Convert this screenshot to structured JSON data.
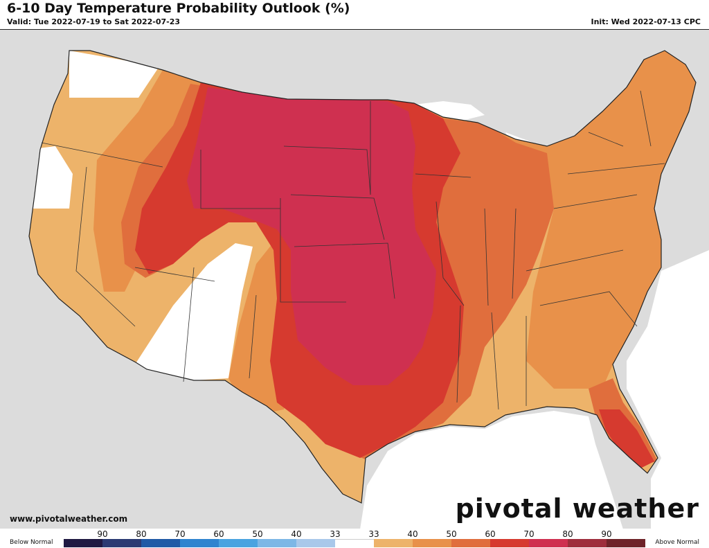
{
  "header": {
    "title": "6-10 Day Temperature Probability Outlook (%)",
    "valid": "Valid: Tue 2022-07-19 to Sat 2022-07-23",
    "init": "Init: Wed 2022-07-13 CPC"
  },
  "footer": {
    "url": "www.pivotalweather.com",
    "brand": "pivotal weather"
  },
  "legend": {
    "below_label": "Below Normal",
    "above_label": "Above Normal",
    "tick_labels": [
      "90",
      "80",
      "70",
      "60",
      "50",
      "40",
      "33",
      "33",
      "40",
      "50",
      "60",
      "70",
      "80",
      "90"
    ],
    "colors": [
      "#1f1942",
      "#2b3a73",
      "#1f5aa6",
      "#2f84cf",
      "#4aa3e0",
      "#7db7e6",
      "#a9c8ea",
      "#ffffff",
      "#edb36a",
      "#e8914a",
      "#e06e3d",
      "#d63a2f",
      "#cf3050",
      "#9e2e3c",
      "#6e2329"
    ]
  },
  "map_colors": {
    "background": "#dcdcdc",
    "water": "#ffffff",
    "prob_40": "#edb36a",
    "prob_50": "#e8914a",
    "prob_60": "#e06e3d",
    "prob_70": "#d63a2f",
    "prob_80": "#cf3050"
  }
}
